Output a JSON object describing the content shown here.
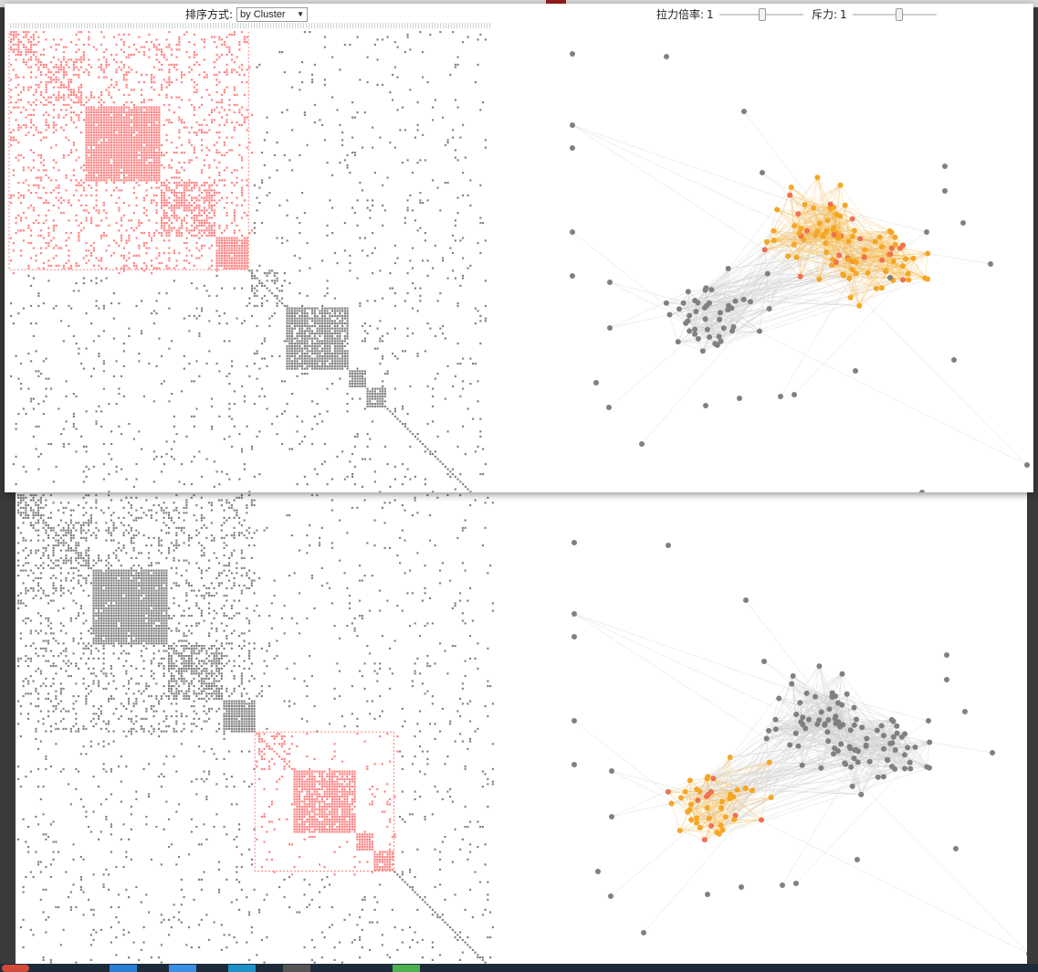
{
  "controls": {
    "sort_label": "排序方式:",
    "sort_value": "by Cluster",
    "force_label": "拉力倍率:",
    "force_value": "1",
    "force_level": 0.5,
    "pressure_label": "斥力:",
    "pressure_value": "1",
    "pressure_level": 0.5
  },
  "colors": {
    "highlight_matrix": "#ff8080",
    "default_matrix": "#808080",
    "highlight_node": "#f5a623",
    "edge_node": "#f07050",
    "default_node": "#808080",
    "edge_line": "#d0d0d0",
    "highlight_edge": "#f5b84a"
  },
  "views": [
    {
      "id": "cluster-view-1",
      "highlighted_cluster": "top-left block",
      "highlighted_graph_cluster": "upper-right community"
    },
    {
      "id": "cluster-view-2",
      "highlighted_cluster": "middle block",
      "highlighted_graph_cluster": "left community"
    }
  ]
}
